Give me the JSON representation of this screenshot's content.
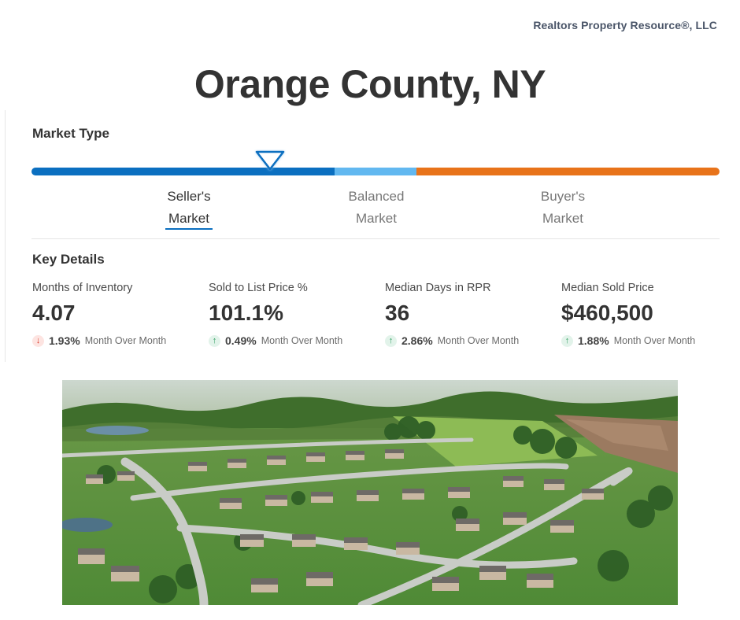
{
  "brand": "Realtors Property Resource®, LLC",
  "title": "Orange County, NY",
  "market_type": {
    "heading": "Market Type",
    "labels": [
      {
        "line1": "Seller's",
        "line2": "Market"
      },
      {
        "line1": "Balanced",
        "line2": "Market"
      },
      {
        "line1": "Buyer's",
        "line2": "Market"
      }
    ],
    "selected": "Seller's Market",
    "indicator_position": 0.35,
    "colors": {
      "seller": "#0b6fc0",
      "balanced": "#62b8f0",
      "buyer": "#e8731a"
    }
  },
  "key_details": {
    "heading": "Key Details",
    "metrics": [
      {
        "label": "Months of Inventory",
        "value": "4.07",
        "direction": "down",
        "change": "1.93%",
        "period": "Month Over Month"
      },
      {
        "label": "Sold to List Price %",
        "value": "101.1%",
        "direction": "up",
        "change": "0.49%",
        "period": "Month Over Month"
      },
      {
        "label": "Median Days in RPR",
        "value": "36",
        "direction": "up",
        "change": "2.86%",
        "period": "Month Over Month"
      },
      {
        "label": "Median Sold Price",
        "value": "$460,500",
        "direction": "up",
        "change": "1.88%",
        "period": "Month Over Month"
      }
    ]
  },
  "image": {
    "subject": "aerial-suburban-neighborhood"
  }
}
